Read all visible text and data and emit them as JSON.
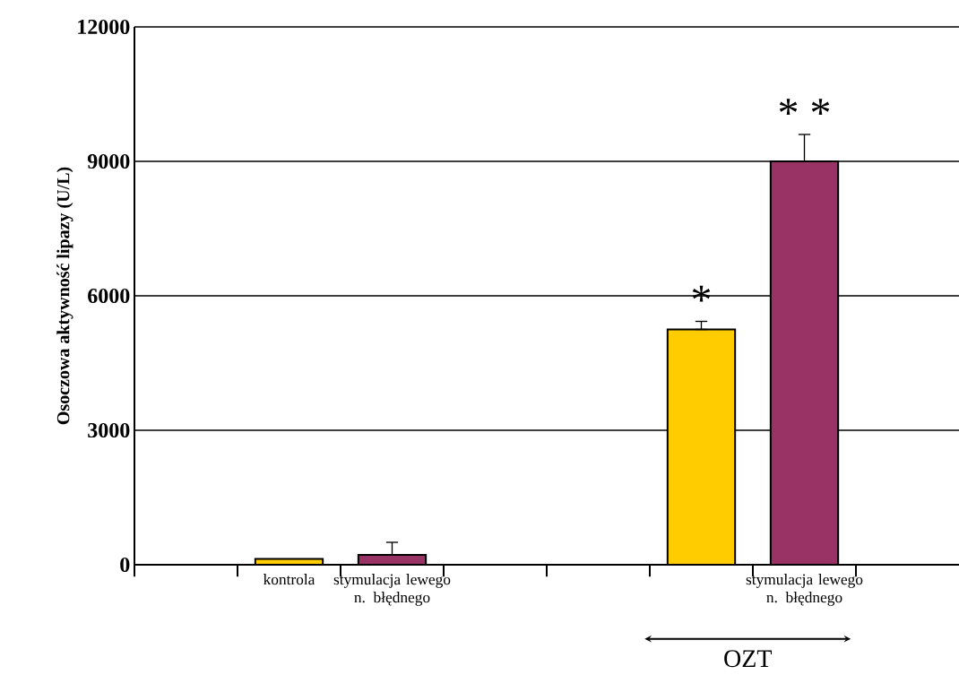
{
  "chart_data": {
    "type": "bar",
    "ylabel": "Osoczowa aktywność lipazy (U/L)",
    "categories": [
      null,
      "kontrola",
      "stymulacja lewego n. błędnego",
      null,
      null,
      null,
      "stymulacja lewego n. błędnego",
      null
    ],
    "values": [
      null,
      130,
      220,
      null,
      null,
      5250,
      9000,
      null
    ],
    "colors": [
      "#ffcc00",
      "#ffcc00",
      "#993366",
      "#ffcc00",
      "#993366",
      "#ffcc00",
      "#993366",
      "#ffcc00"
    ],
    "errors": [
      null,
      null,
      [
        220,
        500
      ],
      null,
      null,
      [
        5250,
        5430
      ],
      [
        9000,
        9600
      ],
      null
    ],
    "value_labels": [
      null,
      null,
      null,
      null,
      null,
      "*",
      "* *",
      null
    ],
    "ylim": [
      0,
      12000
    ],
    "yticks": [
      0,
      3000,
      6000,
      9000,
      12000
    ],
    "grid": "y",
    "annotations": [
      "OZT"
    ]
  }
}
